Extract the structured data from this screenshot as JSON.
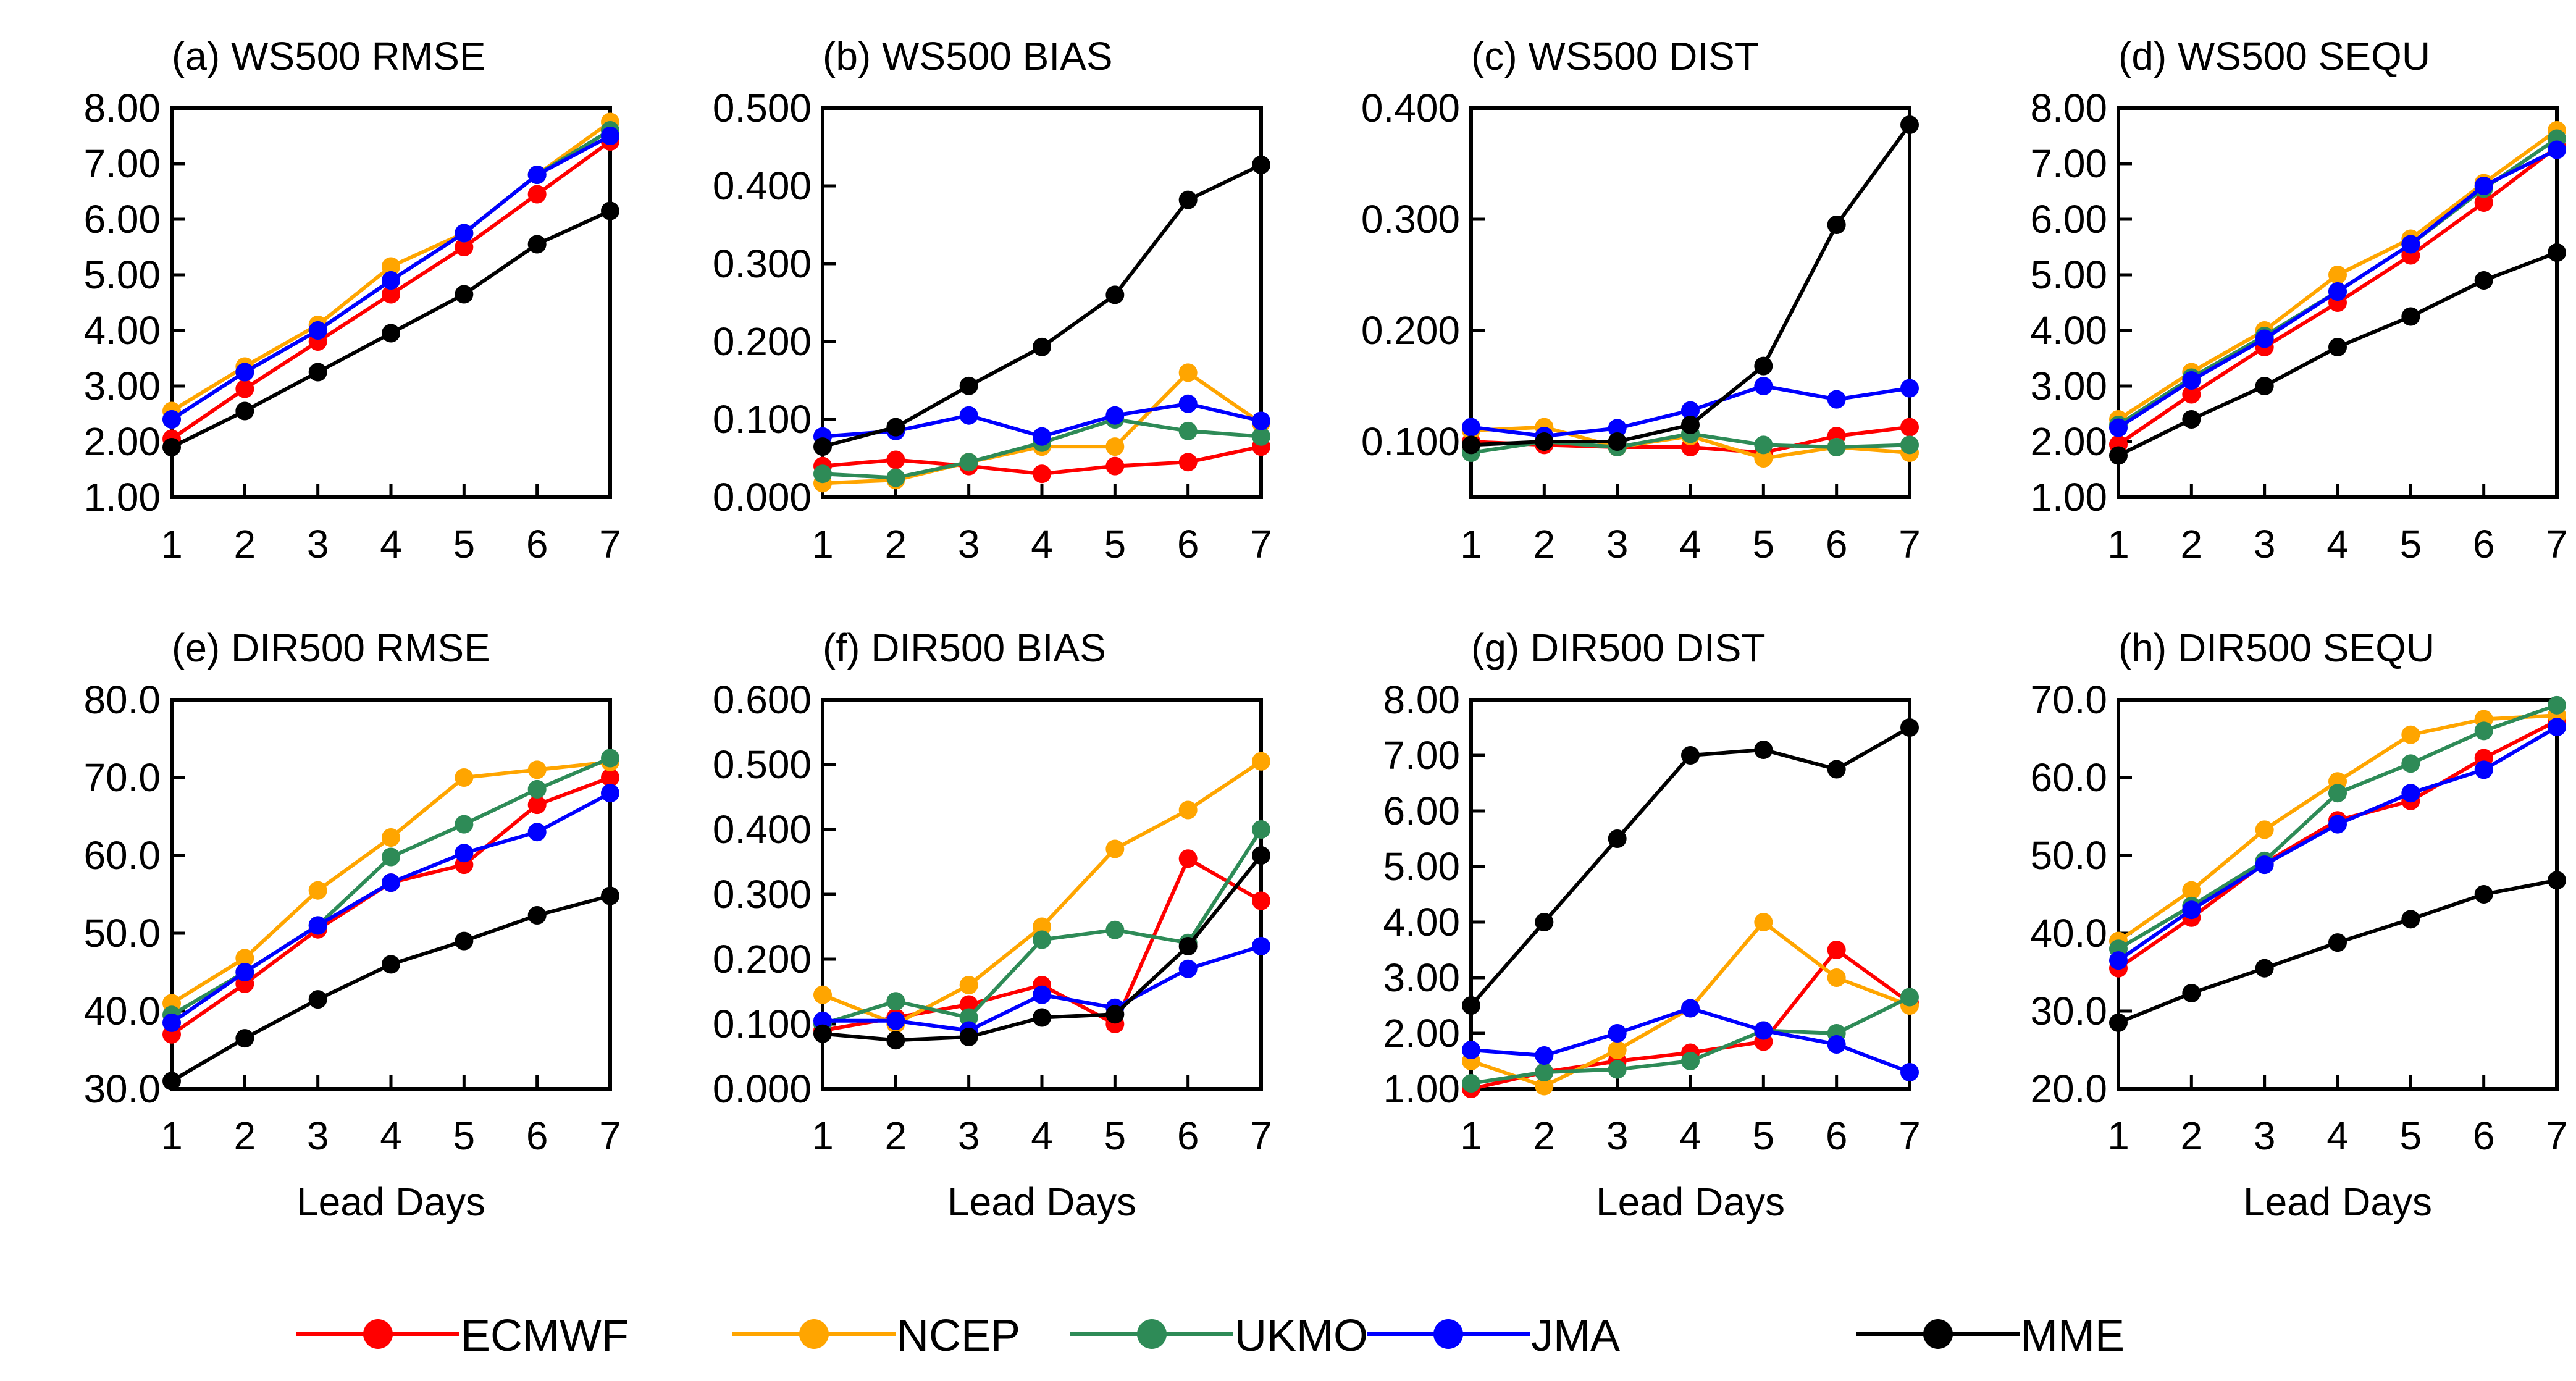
{
  "chart_data": [
    {
      "type": "line",
      "title": "(a) WS500 RMSE",
      "xlabel": "",
      "ylabel": "",
      "x": [
        1,
        2,
        3,
        4,
        5,
        6,
        7
      ],
      "ylim": [
        1.0,
        8.0
      ],
      "yticks": [
        "1.00",
        "2.00",
        "3.00",
        "4.00",
        "5.00",
        "6.00",
        "7.00",
        "8.00"
      ],
      "series": [
        {
          "name": "ECMWF",
          "values": [
            2.05,
            2.95,
            3.8,
            4.65,
            5.5,
            6.45,
            7.4
          ]
        },
        {
          "name": "NCEP",
          "values": [
            2.55,
            3.35,
            4.1,
            5.15,
            5.75,
            6.8,
            7.75
          ]
        },
        {
          "name": "UKMO",
          "values": [
            2.4,
            3.25,
            4.0,
            4.9,
            5.75,
            6.8,
            7.6
          ]
        },
        {
          "name": "JMA",
          "values": [
            2.4,
            3.25,
            4.0,
            4.9,
            5.75,
            6.8,
            7.5
          ]
        },
        {
          "name": "MME",
          "values": [
            1.9,
            2.55,
            3.25,
            3.95,
            4.65,
            5.55,
            6.15
          ]
        }
      ]
    },
    {
      "type": "line",
      "title": "(b) WS500 BIAS",
      "xlabel": "",
      "ylabel": "",
      "x": [
        1,
        2,
        3,
        4,
        5,
        6,
        7
      ],
      "ylim": [
        0.0,
        0.5
      ],
      "yticks": [
        "0.000",
        "0.100",
        "0.200",
        "0.300",
        "0.400",
        "0.500"
      ],
      "series": [
        {
          "name": "ECMWF",
          "values": [
            0.04,
            0.048,
            0.04,
            0.03,
            0.04,
            0.045,
            0.065
          ]
        },
        {
          "name": "NCEP",
          "values": [
            0.018,
            0.022,
            0.045,
            0.065,
            0.065,
            0.16,
            0.095
          ]
        },
        {
          "name": "UKMO",
          "values": [
            0.03,
            0.025,
            0.045,
            0.07,
            0.1,
            0.085,
            0.078
          ]
        },
        {
          "name": "JMA",
          "values": [
            0.078,
            0.085,
            0.105,
            0.078,
            0.105,
            0.12,
            0.098
          ]
        },
        {
          "name": "MME",
          "values": [
            0.065,
            0.09,
            0.143,
            0.193,
            0.26,
            0.382,
            0.427
          ]
        }
      ]
    },
    {
      "type": "line",
      "title": "(c) WS500 DIST",
      "xlabel": "",
      "ylabel": "",
      "x": [
        1,
        2,
        3,
        4,
        5,
        6,
        7
      ],
      "ylim": [
        0.05,
        0.4
      ],
      "yticks": [
        "0.100",
        "0.200",
        "0.300",
        "0.400"
      ],
      "series": [
        {
          "name": "ECMWF",
          "values": [
            0.1,
            0.097,
            0.095,
            0.095,
            0.09,
            0.105,
            0.113
          ]
        },
        {
          "name": "NCEP",
          "values": [
            0.11,
            0.113,
            0.095,
            0.105,
            0.085,
            0.095,
            0.09
          ]
        },
        {
          "name": "UKMO",
          "values": [
            0.09,
            0.1,
            0.095,
            0.107,
            0.097,
            0.095,
            0.097
          ]
        },
        {
          "name": "JMA",
          "values": [
            0.113,
            0.105,
            0.112,
            0.128,
            0.15,
            0.138,
            0.148
          ]
        },
        {
          "name": "MME",
          "values": [
            0.097,
            0.1,
            0.1,
            0.115,
            0.168,
            0.295,
            0.385
          ]
        }
      ]
    },
    {
      "type": "line",
      "title": "(d) WS500 SEQU",
      "xlabel": "",
      "ylabel": "",
      "x": [
        1,
        2,
        3,
        4,
        5,
        6,
        7
      ],
      "ylim": [
        1.0,
        8.0
      ],
      "yticks": [
        "1.00",
        "2.00",
        "3.00",
        "4.00",
        "5.00",
        "6.00",
        "7.00",
        "8.00"
      ],
      "series": [
        {
          "name": "ECMWF",
          "values": [
            1.95,
            2.85,
            3.7,
            4.5,
            5.35,
            6.3,
            7.3
          ]
        },
        {
          "name": "NCEP",
          "values": [
            2.4,
            3.25,
            4.0,
            5.0,
            5.65,
            6.65,
            7.6
          ]
        },
        {
          "name": "UKMO",
          "values": [
            2.3,
            3.15,
            3.9,
            4.7,
            5.55,
            6.55,
            7.45
          ]
        },
        {
          "name": "JMA",
          "values": [
            2.25,
            3.1,
            3.85,
            4.7,
            5.55,
            6.6,
            7.25
          ]
        },
        {
          "name": "MME",
          "values": [
            1.75,
            2.4,
            3.0,
            3.7,
            4.25,
            4.9,
            5.4
          ]
        }
      ]
    },
    {
      "type": "line",
      "title": "(e) DIR500 RMSE",
      "xlabel": "Lead Days",
      "ylabel": "",
      "x": [
        1,
        2,
        3,
        4,
        5,
        6,
        7
      ],
      "ylim": [
        30.0,
        80.0
      ],
      "yticks": [
        "30.0",
        "40.0",
        "50.0",
        "60.0",
        "70.0",
        "80.0"
      ],
      "series": [
        {
          "name": "ECMWF",
          "values": [
            37.0,
            43.5,
            50.5,
            56.5,
            58.8,
            66.5,
            70.0
          ]
        },
        {
          "name": "NCEP",
          "values": [
            41.0,
            46.8,
            55.5,
            62.3,
            70.0,
            71.0,
            72.0
          ]
        },
        {
          "name": "UKMO",
          "values": [
            39.5,
            45.0,
            51.0,
            59.8,
            64.0,
            68.5,
            72.5
          ]
        },
        {
          "name": "JMA",
          "values": [
            38.5,
            45.0,
            51.0,
            56.5,
            60.3,
            63.0,
            68.0
          ]
        },
        {
          "name": "MME",
          "values": [
            31.0,
            36.5,
            41.5,
            46.0,
            49.0,
            52.3,
            54.8
          ]
        }
      ]
    },
    {
      "type": "line",
      "title": "(f) DIR500 BIAS",
      "xlabel": "Lead Days",
      "ylabel": "",
      "x": [
        1,
        2,
        3,
        4,
        5,
        6,
        7
      ],
      "ylim": [
        0.0,
        0.6
      ],
      "yticks": [
        "0.000",
        "0.100",
        "0.200",
        "0.300",
        "0.400",
        "0.500",
        "0.600"
      ],
      "series": [
        {
          "name": "ECMWF",
          "values": [
            0.09,
            0.11,
            0.13,
            0.16,
            0.1,
            0.355,
            0.29
          ]
        },
        {
          "name": "NCEP",
          "values": [
            0.145,
            0.1,
            0.16,
            0.25,
            0.37,
            0.43,
            0.505
          ]
        },
        {
          "name": "UKMO",
          "values": [
            0.1,
            0.135,
            0.11,
            0.23,
            0.245,
            0.225,
            0.4
          ]
        },
        {
          "name": "JMA",
          "values": [
            0.105,
            0.105,
            0.09,
            0.145,
            0.125,
            0.185,
            0.22
          ]
        },
        {
          "name": "MME",
          "values": [
            0.085,
            0.075,
            0.08,
            0.11,
            0.115,
            0.22,
            0.36
          ]
        }
      ]
    },
    {
      "type": "line",
      "title": "(g) DIR500 DIST",
      "xlabel": "Lead Days",
      "ylabel": "",
      "x": [
        1,
        2,
        3,
        4,
        5,
        6,
        7
      ],
      "ylim": [
        1.0,
        8.0
      ],
      "yticks": [
        "1.00",
        "2.00",
        "3.00",
        "4.00",
        "5.00",
        "6.00",
        "7.00",
        "8.00"
      ],
      "series": [
        {
          "name": "ECMWF",
          "values": [
            1.0,
            1.3,
            1.5,
            1.65,
            1.85,
            3.5,
            2.55
          ]
        },
        {
          "name": "NCEP",
          "values": [
            1.5,
            1.05,
            1.7,
            2.45,
            4.0,
            3.0,
            2.5
          ]
        },
        {
          "name": "UKMO",
          "values": [
            1.1,
            1.3,
            1.35,
            1.5,
            2.05,
            2.0,
            2.65
          ]
        },
        {
          "name": "JMA",
          "values": [
            1.7,
            1.6,
            2.0,
            2.45,
            2.05,
            1.8,
            1.3
          ]
        },
        {
          "name": "MME",
          "values": [
            2.5,
            4.0,
            5.5,
            7.0,
            7.1,
            6.75,
            7.5
          ]
        }
      ]
    },
    {
      "type": "line",
      "title": "(h) DIR500 SEQU",
      "xlabel": "Lead Days",
      "ylabel": "",
      "x": [
        1,
        2,
        3,
        4,
        5,
        6,
        7
      ],
      "ylim": [
        20.0,
        70.0
      ],
      "yticks": [
        "20.0",
        "30.0",
        "40.0",
        "50.0",
        "60.0",
        "70.0"
      ],
      "series": [
        {
          "name": "ECMWF",
          "values": [
            35.5,
            42.0,
            49.0,
            54.5,
            57.0,
            62.5,
            67.3
          ]
        },
        {
          "name": "NCEP",
          "values": [
            39.0,
            45.5,
            53.3,
            59.5,
            65.5,
            67.5,
            68.0
          ]
        },
        {
          "name": "UKMO",
          "values": [
            38.0,
            43.5,
            49.3,
            58.0,
            61.8,
            66.0,
            69.3
          ]
        },
        {
          "name": "JMA",
          "values": [
            36.5,
            43.0,
            48.8,
            54.0,
            58.0,
            61.0,
            66.5
          ]
        },
        {
          "name": "MME",
          "values": [
            28.5,
            32.3,
            35.5,
            38.8,
            41.8,
            45.0,
            46.8
          ]
        }
      ]
    }
  ],
  "colors": {
    "ECMWF": "#ff0000",
    "NCEP": "#ffa500",
    "UKMO": "#2e8b57",
    "JMA": "#0000ff",
    "MME": "#000000"
  },
  "legend": [
    "ECMWF",
    "NCEP",
    "UKMO",
    "JMA",
    "MME"
  ]
}
